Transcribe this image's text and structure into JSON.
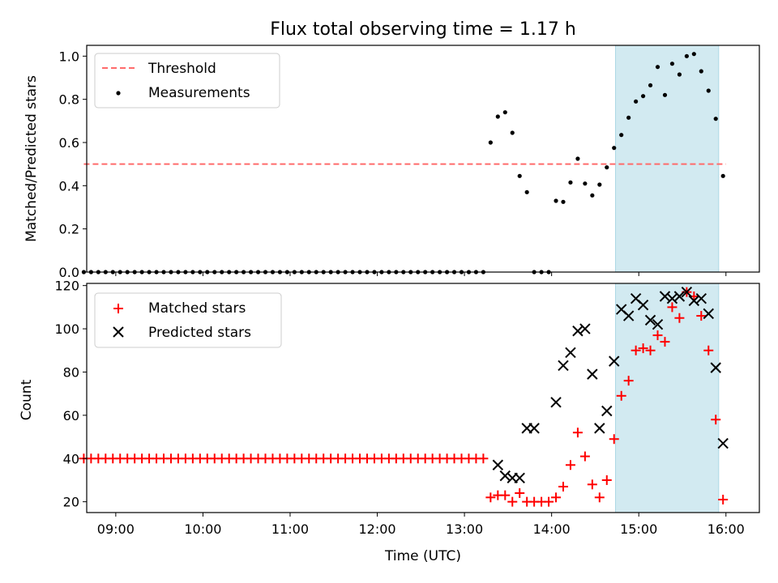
{
  "title": "Flux total observing time = 1.17 h",
  "xlabel": "Time (UTC)",
  "chart_data": [
    {
      "type": "scatter",
      "ylabel": "Matched/Predicted stars",
      "ylim": [
        0,
        1.05
      ],
      "yticks": [
        "0.0",
        "0.2",
        "0.4",
        "0.6",
        "0.8",
        "1.0"
      ],
      "ytick_values": [
        0,
        0.2,
        0.4,
        0.6,
        0.8,
        1.0
      ],
      "xlim": [
        "08:40",
        "16:23"
      ],
      "legend_position": "upper-left",
      "highlight_span": [
        "14:44",
        "15:55"
      ],
      "highlight_color": "#add8e6",
      "series": [
        {
          "name": "Threshold",
          "kind": "dashed-line",
          "color": "#ff6b6b",
          "x": [
            "08:38",
            "16:00"
          ],
          "y": [
            0.5,
            0.5
          ]
        },
        {
          "name": "Measurements",
          "kind": "dot",
          "color": "#000000",
          "x": [
            "08:38",
            "08:43",
            "08:48",
            "08:53",
            "08:58",
            "09:03",
            "09:08",
            "09:13",
            "09:18",
            "09:23",
            "09:28",
            "09:33",
            "09:38",
            "09:43",
            "09:48",
            "09:53",
            "09:58",
            "10:03",
            "10:08",
            "10:13",
            "10:18",
            "10:23",
            "10:28",
            "10:33",
            "10:38",
            "10:43",
            "10:48",
            "10:53",
            "10:58",
            "11:03",
            "11:08",
            "11:13",
            "11:18",
            "11:23",
            "11:28",
            "11:33",
            "11:38",
            "11:43",
            "11:48",
            "11:53",
            "11:58",
            "12:03",
            "12:08",
            "12:13",
            "12:18",
            "12:23",
            "12:28",
            "12:33",
            "12:38",
            "12:43",
            "12:48",
            "12:53",
            "12:58",
            "13:03",
            "13:08",
            "13:13",
            "13:18",
            "13:23",
            "13:28",
            "13:33",
            "13:38",
            "13:43",
            "13:48",
            "13:53",
            "13:58",
            "14:03",
            "14:08",
            "14:13",
            "14:18",
            "14:23",
            "14:28",
            "14:33",
            "14:38",
            "14:43",
            "14:48",
            "14:53",
            "14:58",
            "15:03",
            "15:08",
            "15:13",
            "15:18",
            "15:23",
            "15:28",
            "15:33",
            "15:38",
            "15:43",
            "15:48",
            "15:53",
            "15:58"
          ],
          "y": [
            0,
            0,
            0,
            0,
            0,
            0,
            0,
            0,
            0,
            0,
            0,
            0,
            0,
            0,
            0,
            0,
            0,
            0,
            0,
            0,
            0,
            0,
            0,
            0,
            0,
            0,
            0,
            0,
            0,
            0,
            0,
            0,
            0,
            0,
            0,
            0,
            0,
            0,
            0,
            0,
            0,
            0,
            0,
            0,
            0,
            0,
            0,
            0,
            0,
            0,
            0,
            0,
            0,
            0,
            0,
            0,
            0.6,
            0.72,
            0.74,
            0.645,
            0.445,
            0.37,
            0,
            0,
            0,
            0.33,
            0.325,
            0.415,
            0.525,
            0.41,
            0.355,
            0.405,
            0.485,
            0.575,
            0.635,
            0.715,
            0.79,
            0.815,
            0.865,
            0.95,
            0.82,
            0.965,
            0.915,
            1.0,
            1.01,
            0.93,
            0.84,
            0.71,
            0.445
          ]
        }
      ]
    },
    {
      "type": "scatter",
      "ylabel": "Count",
      "ylim": [
        15,
        121
      ],
      "yticks": [
        "20",
        "40",
        "60",
        "80",
        "100",
        "120"
      ],
      "ytick_values": [
        20,
        40,
        60,
        80,
        100,
        120
      ],
      "xlim": [
        "08:40",
        "16:23"
      ],
      "xticks": [
        "09:00",
        "10:00",
        "11:00",
        "12:00",
        "13:00",
        "14:00",
        "15:00",
        "16:00"
      ],
      "legend_position": "upper-left",
      "highlight_span": [
        "14:44",
        "15:55"
      ],
      "highlight_color": "#add8e6",
      "series": [
        {
          "name": "Matched stars",
          "kind": "plus",
          "color": "#ff0000",
          "x": [
            "08:38",
            "08:43",
            "08:48",
            "08:53",
            "08:58",
            "09:03",
            "09:08",
            "09:13",
            "09:18",
            "09:23",
            "09:28",
            "09:33",
            "09:38",
            "09:43",
            "09:48",
            "09:53",
            "09:58",
            "10:03",
            "10:08",
            "10:13",
            "10:18",
            "10:23",
            "10:28",
            "10:33",
            "10:38",
            "10:43",
            "10:48",
            "10:53",
            "10:58",
            "11:03",
            "11:08",
            "11:13",
            "11:18",
            "11:23",
            "11:28",
            "11:33",
            "11:38",
            "11:43",
            "11:48",
            "11:53",
            "11:58",
            "12:03",
            "12:08",
            "12:13",
            "12:18",
            "12:23",
            "12:28",
            "12:33",
            "12:38",
            "12:43",
            "12:48",
            "12:53",
            "12:58",
            "13:03",
            "13:08",
            "13:13",
            "13:18",
            "13:23",
            "13:28",
            "13:33",
            "13:38",
            "13:43",
            "13:48",
            "13:53",
            "13:58",
            "14:03",
            "14:08",
            "14:13",
            "14:18",
            "14:23",
            "14:28",
            "14:33",
            "14:38",
            "14:43",
            "14:48",
            "14:53",
            "14:58",
            "15:03",
            "15:08",
            "15:13",
            "15:18",
            "15:23",
            "15:28",
            "15:33",
            "15:38",
            "15:43",
            "15:48",
            "15:53",
            "15:58"
          ],
          "y": [
            40,
            40,
            40,
            40,
            40,
            40,
            40,
            40,
            40,
            40,
            40,
            40,
            40,
            40,
            40,
            40,
            40,
            40,
            40,
            40,
            40,
            40,
            40,
            40,
            40,
            40,
            40,
            40,
            40,
            40,
            40,
            40,
            40,
            40,
            40,
            40,
            40,
            40,
            40,
            40,
            40,
            40,
            40,
            40,
            40,
            40,
            40,
            40,
            40,
            40,
            40,
            40,
            40,
            40,
            40,
            40,
            22,
            23,
            23,
            20,
            24,
            20,
            20,
            20,
            20,
            22,
            27,
            37,
            52,
            41,
            28,
            22,
            30,
            49,
            69,
            76,
            90,
            91,
            90,
            97,
            94,
            110,
            105,
            117,
            115,
            106,
            90,
            58,
            21
          ]
        },
        {
          "name": "Predicted stars",
          "kind": "cross",
          "color": "#000000",
          "x": [
            "13:23",
            "13:28",
            "13:33",
            "13:38",
            "13:43",
            "13:48",
            "14:03",
            "14:08",
            "14:13",
            "14:18",
            "14:23",
            "14:28",
            "14:33",
            "14:38",
            "14:43",
            "14:48",
            "14:53",
            "14:58",
            "15:03",
            "15:08",
            "15:13",
            "15:18",
            "15:23",
            "15:28",
            "15:33",
            "15:38",
            "15:43",
            "15:48",
            "15:53",
            "15:58"
          ],
          "y": [
            37,
            32,
            31,
            31,
            54,
            54,
            66,
            83,
            89,
            99,
            100,
            79,
            54,
            62,
            85,
            109,
            106,
            114,
            111,
            104,
            102,
            115,
            114,
            115,
            117,
            113,
            114,
            107,
            82,
            47
          ]
        }
      ]
    }
  ]
}
